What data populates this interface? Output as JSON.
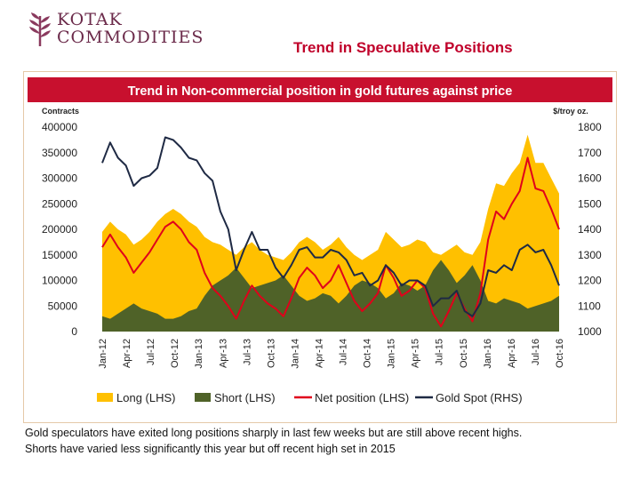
{
  "logo": {
    "line1": "KOTAK",
    "line2": "COMMODITIES"
  },
  "slide_title": "Trend in Speculative Positions",
  "caption": {
    "line1": "Gold speculators have exited long positions sharply in last few weeks but are still above recent highs.",
    "line2": "Shorts have varied less significantly this year but off recent high set in 2015"
  },
  "colors": {
    "long": "#ffc000",
    "short": "#4f6228",
    "net": "#e0001b",
    "gold": "#1f2a44",
    "banner": "#c8102e",
    "title": "#c0002a"
  },
  "chart_data": {
    "type": "area",
    "title": "Trend in Non-commercial position in gold futures against price",
    "ylabel_left": "Contracts",
    "ylabel_right": "$/troy oz.",
    "ylim_left": [
      0,
      400000
    ],
    "ylim_right": [
      1000,
      1800
    ],
    "yticks_left": [
      "400000",
      "350000",
      "300000",
      "250000",
      "200000",
      "150000",
      "100000",
      "50000",
      "0"
    ],
    "yticks_right": [
      "1800",
      "1700",
      "1600",
      "1500",
      "1400",
      "1300",
      "1200",
      "1100",
      "1000"
    ],
    "x_labels": [
      "Jan-12",
      "Apr-12",
      "Jul-12",
      "Oct-12",
      "Jan-13",
      "Apr-13",
      "Jul-13",
      "Oct-13",
      "Jan-14",
      "Apr-14",
      "Jul-14",
      "Oct-14",
      "Jan-15",
      "Apr-15",
      "Jul-15",
      "Oct-15",
      "Jan-16",
      "Apr-16",
      "Jul-16",
      "Oct-16"
    ],
    "legend": [
      "Long (LHS)",
      "Short (LHS)",
      "Net position (LHS)",
      "Gold Spot (RHS)"
    ],
    "legend_position": "bottom",
    "x": [
      "Jan-12",
      "Feb-12",
      "Mar-12",
      "Apr-12",
      "May-12",
      "Jun-12",
      "Jul-12",
      "Aug-12",
      "Sep-12",
      "Oct-12",
      "Nov-12",
      "Dec-12",
      "Jan-13",
      "Feb-13",
      "Mar-13",
      "Apr-13",
      "May-13",
      "Jun-13",
      "Jul-13",
      "Aug-13",
      "Sep-13",
      "Oct-13",
      "Nov-13",
      "Dec-13",
      "Jan-14",
      "Feb-14",
      "Mar-14",
      "Apr-14",
      "May-14",
      "Jun-14",
      "Jul-14",
      "Aug-14",
      "Sep-14",
      "Oct-14",
      "Nov-14",
      "Dec-14",
      "Jan-15",
      "Feb-15",
      "Mar-15",
      "Apr-15",
      "May-15",
      "Jun-15",
      "Jul-15",
      "Aug-15",
      "Sep-15",
      "Oct-15",
      "Nov-15",
      "Dec-15",
      "Jan-16",
      "Feb-16",
      "Mar-16",
      "Apr-16",
      "May-16",
      "Jun-16",
      "Jul-16",
      "Aug-16",
      "Sep-16",
      "Oct-16",
      "Nov-16"
    ],
    "series": [
      {
        "name": "Long (LHS)",
        "axis": "left",
        "values": [
          195000,
          215000,
          200000,
          190000,
          170000,
          180000,
          195000,
          215000,
          230000,
          240000,
          230000,
          215000,
          205000,
          185000,
          175000,
          170000,
          160000,
          150000,
          165000,
          175000,
          160000,
          150000,
          145000,
          140000,
          155000,
          175000,
          185000,
          175000,
          160000,
          170000,
          185000,
          165000,
          150000,
          140000,
          150000,
          160000,
          195000,
          180000,
          165000,
          170000,
          180000,
          175000,
          155000,
          150000,
          160000,
          170000,
          155000,
          150000,
          175000,
          240000,
          290000,
          285000,
          310000,
          330000,
          385000,
          330000,
          330000,
          300000,
          270000
        ]
      },
      {
        "name": "Short (LHS)",
        "axis": "left",
        "values": [
          30000,
          25000,
          35000,
          45000,
          55000,
          45000,
          40000,
          35000,
          25000,
          25000,
          30000,
          40000,
          45000,
          70000,
          90000,
          100000,
          110000,
          125000,
          105000,
          85000,
          90000,
          95000,
          100000,
          110000,
          90000,
          70000,
          60000,
          65000,
          75000,
          70000,
          55000,
          70000,
          90000,
          100000,
          95000,
          85000,
          65000,
          75000,
          95000,
          90000,
          80000,
          90000,
          120000,
          140000,
          120000,
          95000,
          110000,
          130000,
          100000,
          60000,
          55000,
          65000,
          60000,
          55000,
          45000,
          50000,
          55000,
          60000,
          70000
        ]
      },
      {
        "name": "Net position (LHS)",
        "axis": "left",
        "values": [
          165000,
          190000,
          165000,
          145000,
          115000,
          135000,
          155000,
          180000,
          205000,
          215000,
          200000,
          175000,
          160000,
          115000,
          85000,
          70000,
          50000,
          25000,
          60000,
          90000,
          70000,
          55000,
          45000,
          30000,
          65000,
          105000,
          125000,
          110000,
          85000,
          100000,
          130000,
          95000,
          60000,
          40000,
          55000,
          75000,
          130000,
          105000,
          70000,
          80000,
          100000,
          85000,
          35000,
          10000,
          40000,
          75000,
          45000,
          20000,
          75000,
          180000,
          235000,
          220000,
          250000,
          275000,
          340000,
          280000,
          275000,
          240000,
          200000
        ]
      },
      {
        "name": "Gold Spot (RHS)",
        "axis": "right",
        "values": [
          1660,
          1740,
          1680,
          1650,
          1570,
          1600,
          1610,
          1640,
          1760,
          1750,
          1720,
          1680,
          1670,
          1620,
          1590,
          1470,
          1400,
          1240,
          1320,
          1390,
          1320,
          1320,
          1250,
          1210,
          1260,
          1320,
          1330,
          1290,
          1290,
          1320,
          1310,
          1280,
          1220,
          1230,
          1180,
          1200,
          1260,
          1230,
          1180,
          1200,
          1200,
          1180,
          1100,
          1130,
          1130,
          1160,
          1080,
          1060,
          1110,
          1240,
          1230,
          1260,
          1240,
          1320,
          1340,
          1310,
          1320,
          1260,
          1180
        ]
      }
    ]
  }
}
